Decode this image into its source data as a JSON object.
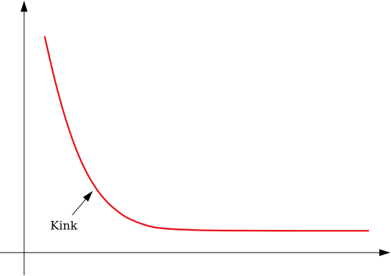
{
  "chart_data": {
    "type": "line",
    "title": "",
    "xlabel": "",
    "ylabel": "",
    "xlim": [
      0,
      10
    ],
    "ylim": [
      0,
      10
    ],
    "grid": false,
    "legend": "none",
    "axis_style": "arrowed-axes-no-ticks",
    "series": [
      {
        "color": "#e8141a",
        "x": [
          0.6,
          0.9,
          1.2,
          1.5,
          1.8,
          2.1,
          2.4,
          2.7,
          3.0,
          3.5,
          4.0,
          5.0,
          6.0,
          7.0,
          8.0,
          9.0,
          10.0
        ],
        "y": [
          9.3,
          7.4,
          5.8,
          4.5,
          3.5,
          2.75,
          2.2,
          1.8,
          1.5,
          1.2,
          1.05,
          0.97,
          0.95,
          0.945,
          0.94,
          0.94,
          0.94
        ]
      }
    ],
    "annotations": [
      {
        "text": "Kink",
        "x": 2.1,
        "y": 2.75
      }
    ]
  }
}
